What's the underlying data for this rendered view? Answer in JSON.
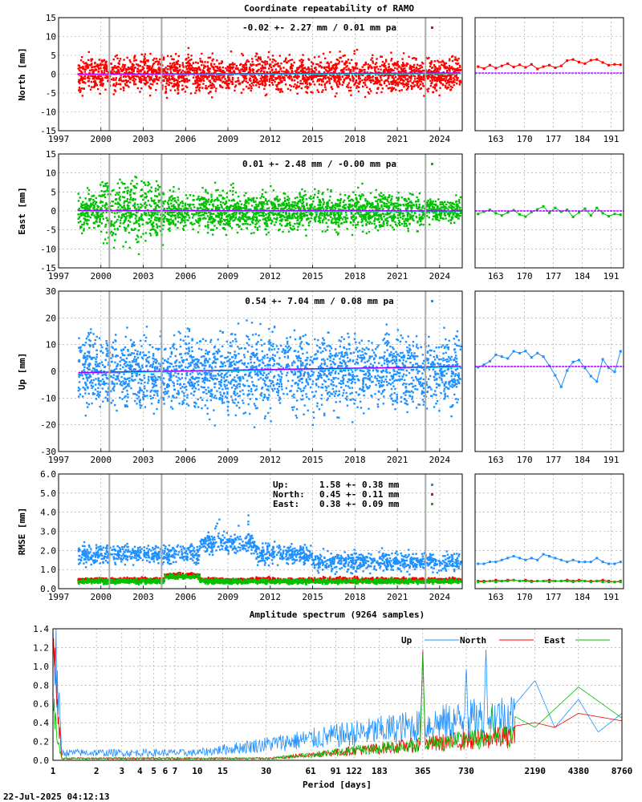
{
  "title": "Coordinate repeatability of RAMO",
  "timestamp": "22-Jul-2025 04:12:13",
  "year_ticks": [
    "1997",
    "2000",
    "2003",
    "2006",
    "2009",
    "2012",
    "2015",
    "2018",
    "2021",
    "2024"
  ],
  "day_ticks": [
    "163",
    "170",
    "177",
    "184",
    "191"
  ],
  "chart_data": [
    {
      "type": "scatter",
      "name": "north",
      "ylabel": "North [mm]",
      "ylim": [
        -15,
        15
      ],
      "yticks": [
        -15,
        -10,
        -5,
        0,
        5,
        10,
        15
      ],
      "ytick_labels": [
        "-15",
        "-10",
        "-5",
        "0",
        "5",
        "10",
        "15"
      ],
      "stats": "-0.02 +- 2.27 mm /  0.01 mm pa",
      "color": "#ff0000",
      "amplitude": 2.3,
      "offset": 0,
      "trend_color": "#a000ff",
      "trend_start": 0.0,
      "trend_end": 0.3,
      "xlim": [
        1997,
        2025.6
      ],
      "recent_values": [
        2.0,
        1.5,
        2.4,
        1.6,
        2.2,
        2.8,
        1.9,
        2.5,
        1.8,
        2.6,
        1.4,
        2.0,
        2.4,
        1.7,
        2.2,
        3.6,
        3.9,
        3.2,
        2.8,
        3.7,
        3.9,
        3.1,
        2.4,
        2.6,
        2.5
      ]
    },
    {
      "type": "scatter",
      "name": "east",
      "ylabel": "East [mm]",
      "ylim": [
        -15,
        15
      ],
      "yticks": [
        -15,
        -10,
        -5,
        0,
        5,
        10,
        15
      ],
      "ytick_labels": [
        "-15",
        "-10",
        "-5",
        "0",
        "5",
        "10",
        "15"
      ],
      "stats": "0.01 +- 2.48 mm / -0.00 mm pa",
      "color": "#00c000",
      "amplitude": 2.5,
      "offset": 0,
      "trend_color": "#a000ff",
      "trend_start": 0.1,
      "trend_end": 0.0,
      "xlim": [
        1997,
        2025.6
      ],
      "recent_values": [
        -0.8,
        -0.2,
        0.3,
        -0.6,
        -1.2,
        -0.4,
        0.2,
        -0.9,
        -1.5,
        -0.3,
        0.4,
        1.2,
        -0.5,
        0.8,
        -0.2,
        0.3,
        -1.6,
        -0.4,
        0.6,
        -1.2,
        0.8,
        -0.6,
        -1.4,
        -0.8,
        -1.0
      ]
    },
    {
      "type": "scatter",
      "name": "up",
      "ylabel": "Up [mm]",
      "ylim": [
        -30,
        30
      ],
      "yticks": [
        -30,
        -20,
        -10,
        0,
        10,
        20,
        30
      ],
      "ytick_labels": [
        "-30",
        "-20",
        "-10",
        "0",
        "10",
        "20",
        "30"
      ],
      "stats": "0.54 +- 7.04 mm /  0.08 mm pa",
      "color": "#1e90ff",
      "amplitude": 7.0,
      "offset": 0,
      "trend_color": "#a000ff",
      "trend_start": -0.5,
      "trend_end": 1.8,
      "xlim": [
        1997,
        2025.6
      ],
      "recent_values": [
        1.5,
        2.5,
        3.8,
        6.2,
        5.5,
        4.8,
        7.5,
        6.8,
        7.6,
        5.2,
        6.8,
        5.5,
        2.1,
        -1.5,
        -5.8,
        0.3,
        3.5,
        4.2,
        1.2,
        -1.8,
        -3.8,
        4.5,
        1.3,
        -0.2,
        7.5
      ]
    },
    {
      "type": "scatter",
      "name": "rmse",
      "ylabel": "RMSE [mm]",
      "ylim": [
        0,
        6
      ],
      "yticks": [
        0,
        1,
        2,
        3,
        4,
        5,
        6
      ],
      "ytick_labels": [
        "0.0",
        "1.0",
        "2.0",
        "3.0",
        "4.0",
        "5.0",
        "6.0"
      ],
      "xlim": [
        1997,
        2025.6
      ],
      "legend": [
        {
          "label": "Up:",
          "value": "1.58 +- 0.38 mm",
          "color": "#1e90ff"
        },
        {
          "label": "North:",
          "value": "0.45 +- 0.11 mm",
          "color": "#ff0000"
        },
        {
          "label": "East:",
          "value": "0.38 +- 0.09 mm",
          "color": "#00c000"
        }
      ],
      "series": [
        {
          "name": "Up",
          "color": "#1e90ff",
          "mean": 1.58,
          "recent_values": [
            1.3,
            1.3,
            1.4,
            1.4,
            1.5,
            1.6,
            1.7,
            1.6,
            1.5,
            1.6,
            1.5,
            1.8,
            1.7,
            1.6,
            1.5,
            1.4,
            1.5,
            1.4,
            1.4,
            1.4,
            1.6,
            1.4,
            1.3,
            1.3,
            1.4
          ]
        },
        {
          "name": "North",
          "color": "#ff0000",
          "mean": 0.45,
          "recent_values": [
            0.4,
            0.4,
            0.4,
            0.45,
            0.4,
            0.45,
            0.45,
            0.4,
            0.45,
            0.4,
            0.4,
            0.4,
            0.45,
            0.4,
            0.4,
            0.45,
            0.4,
            0.45,
            0.4,
            0.4,
            0.4,
            0.45,
            0.4,
            0.35,
            0.4
          ]
        },
        {
          "name": "East",
          "color": "#00c000",
          "mean": 0.38,
          "recent_values": [
            0.35,
            0.35,
            0.4,
            0.35,
            0.4,
            0.4,
            0.45,
            0.4,
            0.4,
            0.35,
            0.4,
            0.4,
            0.35,
            0.4,
            0.4,
            0.4,
            0.35,
            0.4,
            0.4,
            0.35,
            0.4,
            0.35,
            0.35,
            0.35,
            0.35
          ]
        }
      ]
    },
    {
      "type": "line",
      "name": "amplitude-spectrum",
      "title": "Amplitude spectrum (9264 samples)",
      "xlabel": "Period [days]",
      "xscale": "log",
      "xlim": [
        1,
        8760
      ],
      "ylim": [
        0,
        1.4
      ],
      "yticks": [
        0,
        0.2,
        0.4,
        0.6,
        0.8,
        1.0,
        1.2,
        1.4
      ],
      "ytick_labels": [
        "0.0",
        "0.2",
        "0.4",
        "0.6",
        "0.8",
        "1.0",
        "1.2",
        "1.4"
      ],
      "xticks": [
        1,
        2,
        3,
        4,
        5,
        6,
        7,
        10,
        15,
        30,
        61,
        91,
        122,
        183,
        365,
        730,
        2190,
        4380,
        8760
      ],
      "xtick_labels": [
        "1",
        "2",
        "3",
        "4",
        "5",
        "6",
        "7",
        "10",
        "15",
        "30",
        "61",
        "91",
        "122",
        "183",
        "365",
        "730",
        "2190",
        "4380",
        "8760"
      ],
      "series": [
        {
          "name": "Up",
          "color": "#1e90ff",
          "peaks": [
            [
              1,
              1.4
            ],
            [
              365,
              1.2
            ],
            [
              730,
              1.05
            ],
            [
              1000,
              1.22
            ],
            [
              1500,
              0.55
            ],
            [
              2190,
              0.85
            ],
            [
              3000,
              0.35
            ],
            [
              4380,
              0.65
            ],
            [
              6000,
              0.3
            ],
            [
              8760,
              0.5
            ]
          ]
        },
        {
          "name": "North",
          "color": "#ff0000",
          "peaks": [
            [
              1,
              1.05
            ],
            [
              365,
              1.18
            ],
            [
              730,
              0.28
            ],
            [
              2190,
              0.4
            ],
            [
              3000,
              0.35
            ],
            [
              4380,
              0.5
            ],
            [
              8760,
              0.42
            ]
          ]
        },
        {
          "name": "East",
          "color": "#00c000",
          "peaks": [
            [
              1,
              0.55
            ],
            [
              365,
              1.15
            ],
            [
              730,
              0.3
            ],
            [
              1100,
              0.6
            ],
            [
              2190,
              0.35
            ],
            [
              4380,
              0.78
            ],
            [
              8760,
              0.45
            ]
          ]
        }
      ]
    }
  ]
}
